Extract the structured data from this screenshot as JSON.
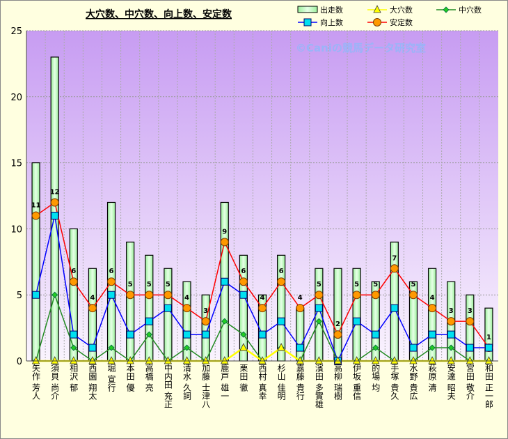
{
  "chart_data": {
    "type": "bar+line",
    "title": "大穴数、中穴数、向上数、安定数",
    "watermark": "©Caniの競馬データ研究室",
    "xlabel": "",
    "ylabel": "",
    "ylim": [
      0,
      25
    ],
    "yticks": [
      0,
      5,
      10,
      15,
      20,
      25
    ],
    "grid": true,
    "legend_position": "top-right",
    "categories": [
      "矢作 芳人",
      "須貝 尚介",
      "相沢 郁",
      "西園 翔太",
      "堀 宣行",
      "本田 優",
      "高橋 亮",
      "中内田 充正",
      "清水 久詞",
      "加藤 士津八",
      "鹿戸 雄一",
      "栗田 徹",
      "西村 真幸",
      "杉山 佳明",
      "嘉藤 貴行",
      "濱田 多實雄",
      "高柳 瑞樹",
      "伊坂 重信",
      "的場 均",
      "手塚 貴久",
      "水野 貴広",
      "萩原 清",
      "安達 昭夫",
      "宮田 敬介",
      "和田 正一郎"
    ],
    "series": [
      {
        "name": "出走数",
        "kind": "bar",
        "color": "#C8FFC8",
        "values": [
          15,
          23,
          10,
          7,
          12,
          9,
          8,
          7,
          6,
          5,
          12,
          8,
          5,
          8,
          4,
          7,
          7,
          7,
          6,
          9,
          6,
          7,
          6,
          5,
          4
        ]
      },
      {
        "name": "大穴数",
        "kind": "line",
        "marker": "triangle",
        "color": "#FFFF00",
        "values": [
          0,
          0,
          0,
          0,
          0,
          0,
          0,
          0,
          0,
          0,
          0,
          1,
          0,
          1,
          0,
          0,
          0,
          0,
          0,
          0,
          0,
          0,
          0,
          0,
          0
        ]
      },
      {
        "name": "中穴数",
        "kind": "line",
        "marker": "diamond",
        "color": "#008000",
        "values": [
          0,
          5,
          1,
          0,
          1,
          0,
          2,
          0,
          1,
          0,
          3,
          2,
          0,
          1,
          0,
          3,
          0,
          0,
          1,
          0,
          0,
          1,
          1,
          0,
          0
        ]
      },
      {
        "name": "向上数",
        "kind": "line",
        "marker": "square",
        "color": "#0000FF",
        "values": [
          5,
          11,
          2,
          1,
          5,
          2,
          3,
          4,
          2,
          2,
          6,
          5,
          2,
          3,
          1,
          4,
          0,
          3,
          2,
          4,
          1,
          2,
          2,
          1,
          1
        ]
      },
      {
        "name": "安定数",
        "kind": "line",
        "marker": "circle",
        "color": "#FF0000",
        "values": [
          11,
          12,
          6,
          4,
          6,
          5,
          5,
          5,
          4,
          3,
          9,
          6,
          4,
          6,
          4,
          5,
          2,
          5,
          5,
          7,
          5,
          4,
          3,
          3,
          1
        ]
      }
    ],
    "data_labels_series": "安定数"
  }
}
